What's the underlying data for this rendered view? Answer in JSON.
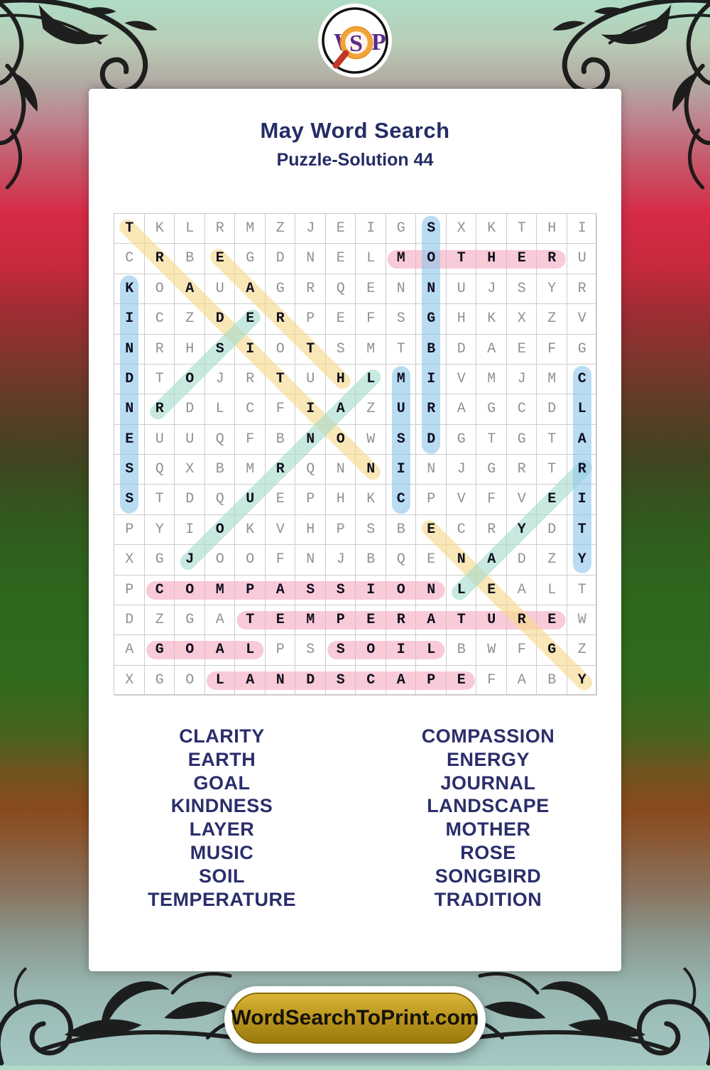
{
  "logo": {
    "w": "W",
    "s": "S",
    "p": "P"
  },
  "header": {
    "title": "May Word Search",
    "subtitle": "Puzzle-Solution 44"
  },
  "grid": {
    "rows": [
      "TKLRMZJEIGSXKTHI",
      "CRBEGDNELMOTHERU",
      "KOAUAGRQENNUJSYR",
      "ICZDERPEFSGHKXZV",
      "NRHSIOTSMTBDAEFG",
      "DTOJRTUHLMIVMJMC",
      "NRDLCFIAZURAGCDL",
      "EUUQFBNOWSDGTGTA",
      "SQXBMRQNNINJGRTR",
      "STDQUEPHKCPVFVEI",
      "PYIOKVHPSBECRYDT",
      "XGJOOFNJBQENADZY",
      "PCOMPASSIONLEALT",
      "DZGATEMPERATUREW",
      "AGOALPSSOILBWFGZ",
      "XGOLANDSCAPEFABY"
    ],
    "placements": [
      {
        "word": "MOTHER",
        "row": 2,
        "col": 10,
        "dir": "E",
        "color": "pink"
      },
      {
        "word": "COMPASSION",
        "row": 13,
        "col": 2,
        "dir": "E",
        "color": "pink"
      },
      {
        "word": "TEMPERATURE",
        "row": 14,
        "col": 5,
        "dir": "E",
        "color": "pink"
      },
      {
        "word": "GOAL",
        "row": 15,
        "col": 2,
        "dir": "E",
        "color": "pink"
      },
      {
        "word": "SOIL",
        "row": 15,
        "col": 8,
        "dir": "E",
        "color": "pink"
      },
      {
        "word": "LANDSCAPE",
        "row": 16,
        "col": 4,
        "dir": "E",
        "color": "pink"
      },
      {
        "word": "TRADITION",
        "row": 1,
        "col": 1,
        "dir": "SE",
        "color": "yellow"
      },
      {
        "word": "EARTH",
        "row": 2,
        "col": 4,
        "dir": "SE",
        "color": "yellow"
      },
      {
        "word": "ENERGY",
        "row": 11,
        "col": 11,
        "dir": "SE",
        "color": "yellow"
      },
      {
        "word": "ROSE",
        "row": 7,
        "col": 2,
        "dir": "NE",
        "color": "teal"
      },
      {
        "word": "JOURNAL",
        "row": 12,
        "col": 3,
        "dir": "NE",
        "color": "teal"
      },
      {
        "word": "LAYER",
        "row": 13,
        "col": 12,
        "dir": "NE",
        "color": "teal"
      },
      {
        "word": "KINDNESS",
        "row": 3,
        "col": 1,
        "dir": "S",
        "color": "blue"
      },
      {
        "word": "SONGBIRD",
        "row": 1,
        "col": 11,
        "dir": "S",
        "color": "blue"
      },
      {
        "word": "MUSIC",
        "row": 6,
        "col": 10,
        "dir": "S",
        "color": "blue"
      },
      {
        "word": "CLARITY",
        "row": 6,
        "col": 16,
        "dir": "S",
        "color": "blue"
      }
    ],
    "highlight_colors": {
      "pink": "#f6a9c0",
      "blue": "#8ec6ec",
      "yellow": "#f6d98a",
      "teal": "#a5dccb"
    }
  },
  "word_list": {
    "left": [
      "CLARITY",
      "EARTH",
      "GOAL",
      "KINDNESS",
      "LAYER",
      "MUSIC",
      "SOIL",
      "TEMPERATURE"
    ],
    "right": [
      "COMPASSION",
      "ENERGY",
      "JOURNAL",
      "LANDSCAPE",
      "MOTHER",
      "ROSE",
      "SONGBIRD",
      "TRADITION"
    ]
  },
  "footer": {
    "site_label": "WordSearchToPrint.com"
  }
}
